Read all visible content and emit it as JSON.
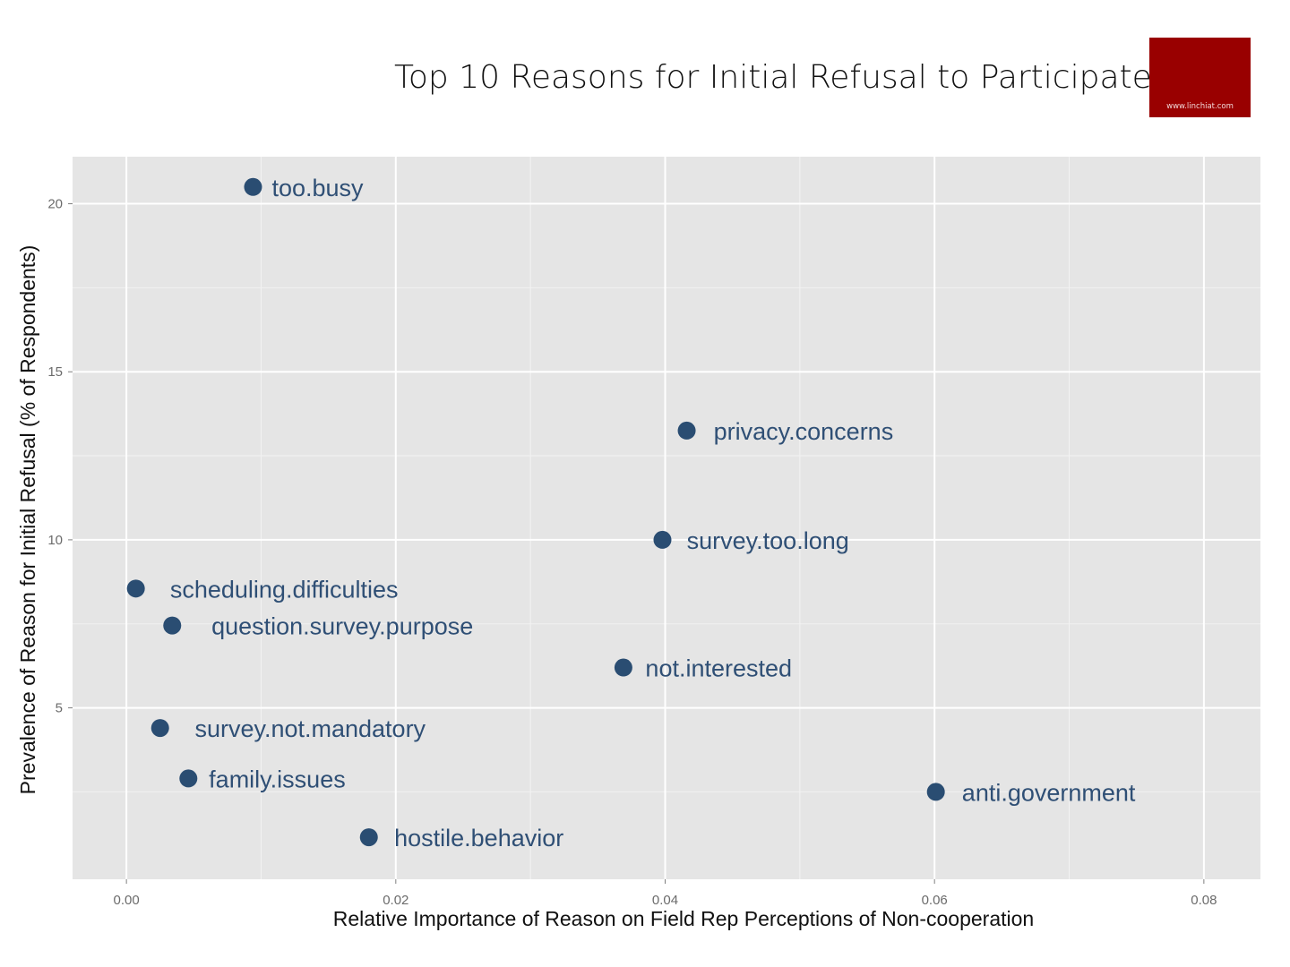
{
  "chart_data": {
    "type": "scatter",
    "title": "Top 10 Reasons for Initial Refusal to Participate",
    "xlabel": "Relative Importance of Reason on Field Rep Perceptions of Non-cooperation",
    "ylabel": "Prevalence of Reason for Initial Refusal (% of Respondents)",
    "xlim": [
      -0.004,
      0.0842
    ],
    "ylim": [
      -0.1,
      21.4
    ],
    "x_ticks": [
      0.0,
      0.02,
      0.04,
      0.06,
      0.08
    ],
    "x_tick_labels": [
      "0.00",
      "0.02",
      "0.04",
      "0.06",
      "0.08"
    ],
    "y_ticks": [
      5,
      10,
      15,
      20
    ],
    "y_tick_labels": [
      "5",
      "10",
      "15",
      "20"
    ],
    "grid": true,
    "background": "#e5e5e5",
    "grid_color": "#ffffff",
    "point_color": "#2a4d72",
    "label_color": "#2f4f75",
    "points": [
      {
        "label": "too.busy",
        "x": 0.0094,
        "y": 20.5
      },
      {
        "label": "privacy.concerns",
        "x": 0.0416,
        "y": 13.25
      },
      {
        "label": "survey.too.long",
        "x": 0.0398,
        "y": 10.0
      },
      {
        "label": "scheduling.difficulties",
        "x": 0.0007,
        "y": 8.55
      },
      {
        "label": "question.survey.purpose",
        "x": 0.0034,
        "y": 7.45
      },
      {
        "label": "not.interested",
        "x": 0.0369,
        "y": 6.2
      },
      {
        "label": "survey.not.mandatory",
        "x": 0.0025,
        "y": 4.4
      },
      {
        "label": "family.issues",
        "x": 0.0046,
        "y": 2.9
      },
      {
        "label": "anti.government",
        "x": 0.0601,
        "y": 2.5
      },
      {
        "label": "hostile.behavior",
        "x": 0.018,
        "y": 1.15
      }
    ]
  },
  "watermark": {
    "text": "www.linchiat.com",
    "color": "#990000"
  }
}
